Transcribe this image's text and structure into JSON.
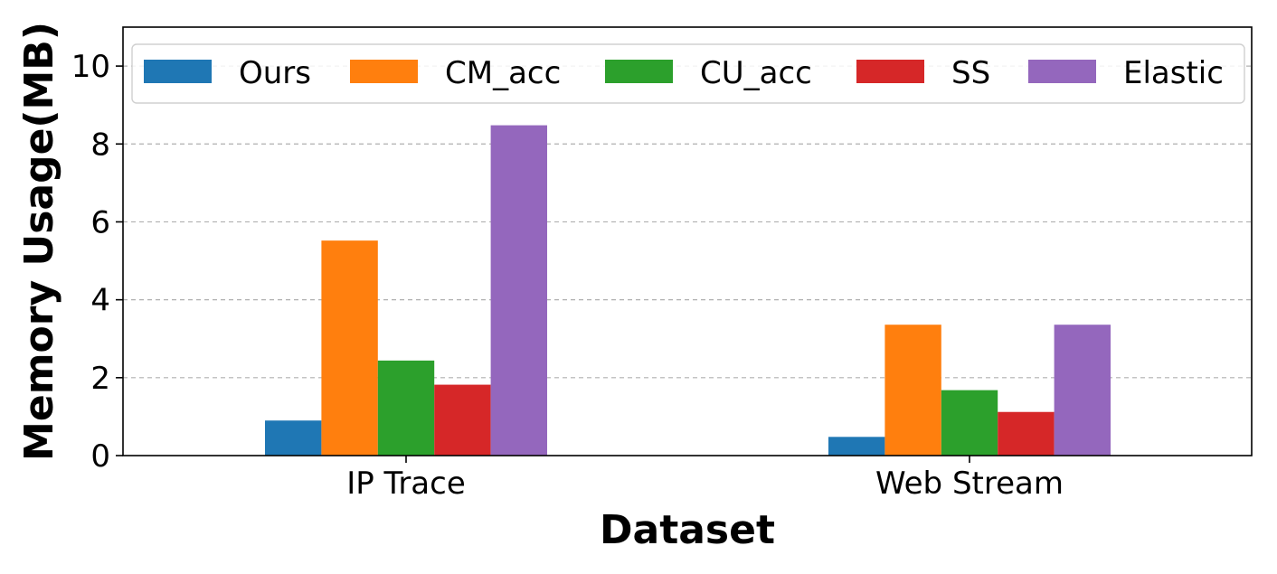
{
  "chart_data": {
    "type": "bar",
    "xlabel": "Dataset",
    "ylabel": "Memory Usage(MB)",
    "categories": [
      "IP Trace",
      "Web Stream"
    ],
    "ylim": [
      0,
      11
    ],
    "yticks": [
      0,
      2,
      4,
      6,
      8,
      10
    ],
    "grid": "y, dashed",
    "legend_position": "top",
    "series": [
      {
        "name": "Ours",
        "color": "#1f77b4",
        "values": [
          0.9,
          0.48
        ]
      },
      {
        "name": "CM_acc",
        "color": "#ff7f0e",
        "values": [
          5.52,
          3.36
        ]
      },
      {
        "name": "CU_acc",
        "color": "#2ca02c",
        "values": [
          2.44,
          1.68
        ]
      },
      {
        "name": "SS",
        "color": "#d62728",
        "values": [
          1.82,
          1.12
        ]
      },
      {
        "name": "Elastic",
        "color": "#9467bd",
        "values": [
          8.48,
          3.36
        ]
      }
    ]
  }
}
